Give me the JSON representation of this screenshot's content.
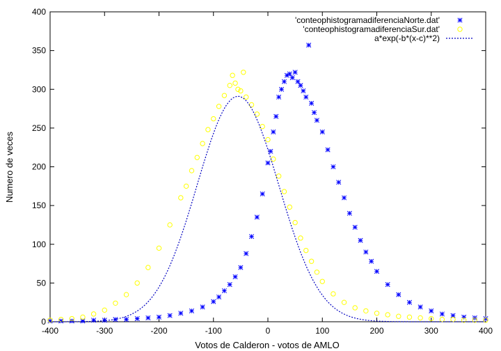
{
  "chart_data": {
    "type": "scatter",
    "title": "",
    "xlabel": "Votos de Calderon - votos de AMLO",
    "ylabel": "Numero de veces",
    "xlim": [
      -400,
      400
    ],
    "ylim": [
      0,
      400
    ],
    "xticks": [
      -400,
      -300,
      -200,
      -100,
      0,
      100,
      200,
      300,
      400
    ],
    "yticks": [
      0,
      50,
      100,
      150,
      200,
      250,
      300,
      350,
      400
    ],
    "legend_position": "top-right",
    "grid": false,
    "series": [
      {
        "name": "'conteophistogramadiferenciaNorte.dat'",
        "marker": "star",
        "color": "#0000ff",
        "points": [
          [
            -400,
            1
          ],
          [
            -380,
            1
          ],
          [
            -360,
            1
          ],
          [
            -340,
            1
          ],
          [
            -320,
            2
          ],
          [
            -300,
            2
          ],
          [
            -280,
            3
          ],
          [
            -260,
            3
          ],
          [
            -240,
            4
          ],
          [
            -220,
            5
          ],
          [
            -200,
            6
          ],
          [
            -180,
            8
          ],
          [
            -160,
            11
          ],
          [
            -140,
            14
          ],
          [
            -120,
            19
          ],
          [
            -100,
            26
          ],
          [
            -90,
            32
          ],
          [
            -80,
            40
          ],
          [
            -70,
            48
          ],
          [
            -60,
            58
          ],
          [
            -50,
            70
          ],
          [
            -40,
            88
          ],
          [
            -30,
            110
          ],
          [
            -20,
            135
          ],
          [
            -10,
            165
          ],
          [
            0,
            205
          ],
          [
            5,
            220
          ],
          [
            10,
            245
          ],
          [
            15,
            265
          ],
          [
            20,
            290
          ],
          [
            25,
            300
          ],
          [
            30,
            310
          ],
          [
            35,
            318
          ],
          [
            40,
            320
          ],
          [
            45,
            315
          ],
          [
            50,
            322
          ],
          [
            55,
            310
          ],
          [
            60,
            305
          ],
          [
            65,
            298
          ],
          [
            70,
            290
          ],
          [
            75,
            357
          ],
          [
            80,
            282
          ],
          [
            85,
            270
          ],
          [
            90,
            260
          ],
          [
            100,
            245
          ],
          [
            110,
            222
          ],
          [
            120,
            200
          ],
          [
            130,
            180
          ],
          [
            140,
            160
          ],
          [
            150,
            140
          ],
          [
            160,
            122
          ],
          [
            170,
            105
          ],
          [
            180,
            90
          ],
          [
            190,
            78
          ],
          [
            200,
            65
          ],
          [
            220,
            48
          ],
          [
            240,
            35
          ],
          [
            260,
            25
          ],
          [
            280,
            19
          ],
          [
            300,
            14
          ],
          [
            320,
            10
          ],
          [
            340,
            8
          ],
          [
            360,
            6
          ],
          [
            380,
            5
          ],
          [
            400,
            4
          ]
        ]
      },
      {
        "name": "'conteophistogramadiferenciaSur.dat'",
        "marker": "circle",
        "color": "#ffff00",
        "points": [
          [
            -400,
            2
          ],
          [
            -380,
            3
          ],
          [
            -360,
            4
          ],
          [
            -340,
            6
          ],
          [
            -320,
            10
          ],
          [
            -300,
            15
          ],
          [
            -280,
            24
          ],
          [
            -260,
            35
          ],
          [
            -240,
            50
          ],
          [
            -220,
            70
          ],
          [
            -200,
            95
          ],
          [
            -180,
            125
          ],
          [
            -160,
            160
          ],
          [
            -150,
            175
          ],
          [
            -140,
            195
          ],
          [
            -130,
            212
          ],
          [
            -120,
            230
          ],
          [
            -110,
            248
          ],
          [
            -100,
            262
          ],
          [
            -90,
            278
          ],
          [
            -80,
            292
          ],
          [
            -70,
            305
          ],
          [
            -65,
            318
          ],
          [
            -60,
            308
          ],
          [
            -55,
            300
          ],
          [
            -50,
            298
          ],
          [
            -45,
            322
          ],
          [
            -40,
            290
          ],
          [
            -30,
            280
          ],
          [
            -20,
            268
          ],
          [
            -10,
            252
          ],
          [
            0,
            235
          ],
          [
            10,
            210
          ],
          [
            20,
            188
          ],
          [
            30,
            168
          ],
          [
            40,
            148
          ],
          [
            50,
            128
          ],
          [
            60,
            108
          ],
          [
            70,
            92
          ],
          [
            80,
            78
          ],
          [
            90,
            64
          ],
          [
            100,
            52
          ],
          [
            120,
            36
          ],
          [
            140,
            25
          ],
          [
            160,
            18
          ],
          [
            180,
            14
          ],
          [
            200,
            11
          ],
          [
            220,
            9
          ],
          [
            240,
            7
          ],
          [
            260,
            6
          ],
          [
            280,
            5
          ],
          [
            300,
            4
          ],
          [
            320,
            3
          ],
          [
            340,
            3
          ],
          [
            360,
            2
          ],
          [
            380,
            2
          ],
          [
            400,
            2
          ]
        ]
      },
      {
        "name": "a*exp(-b*(x-c)**2)",
        "marker": "dotted-line",
        "color": "#0000c0",
        "fit": {
          "a": 291,
          "b": 8.9e-05,
          "c": -55
        }
      }
    ]
  }
}
